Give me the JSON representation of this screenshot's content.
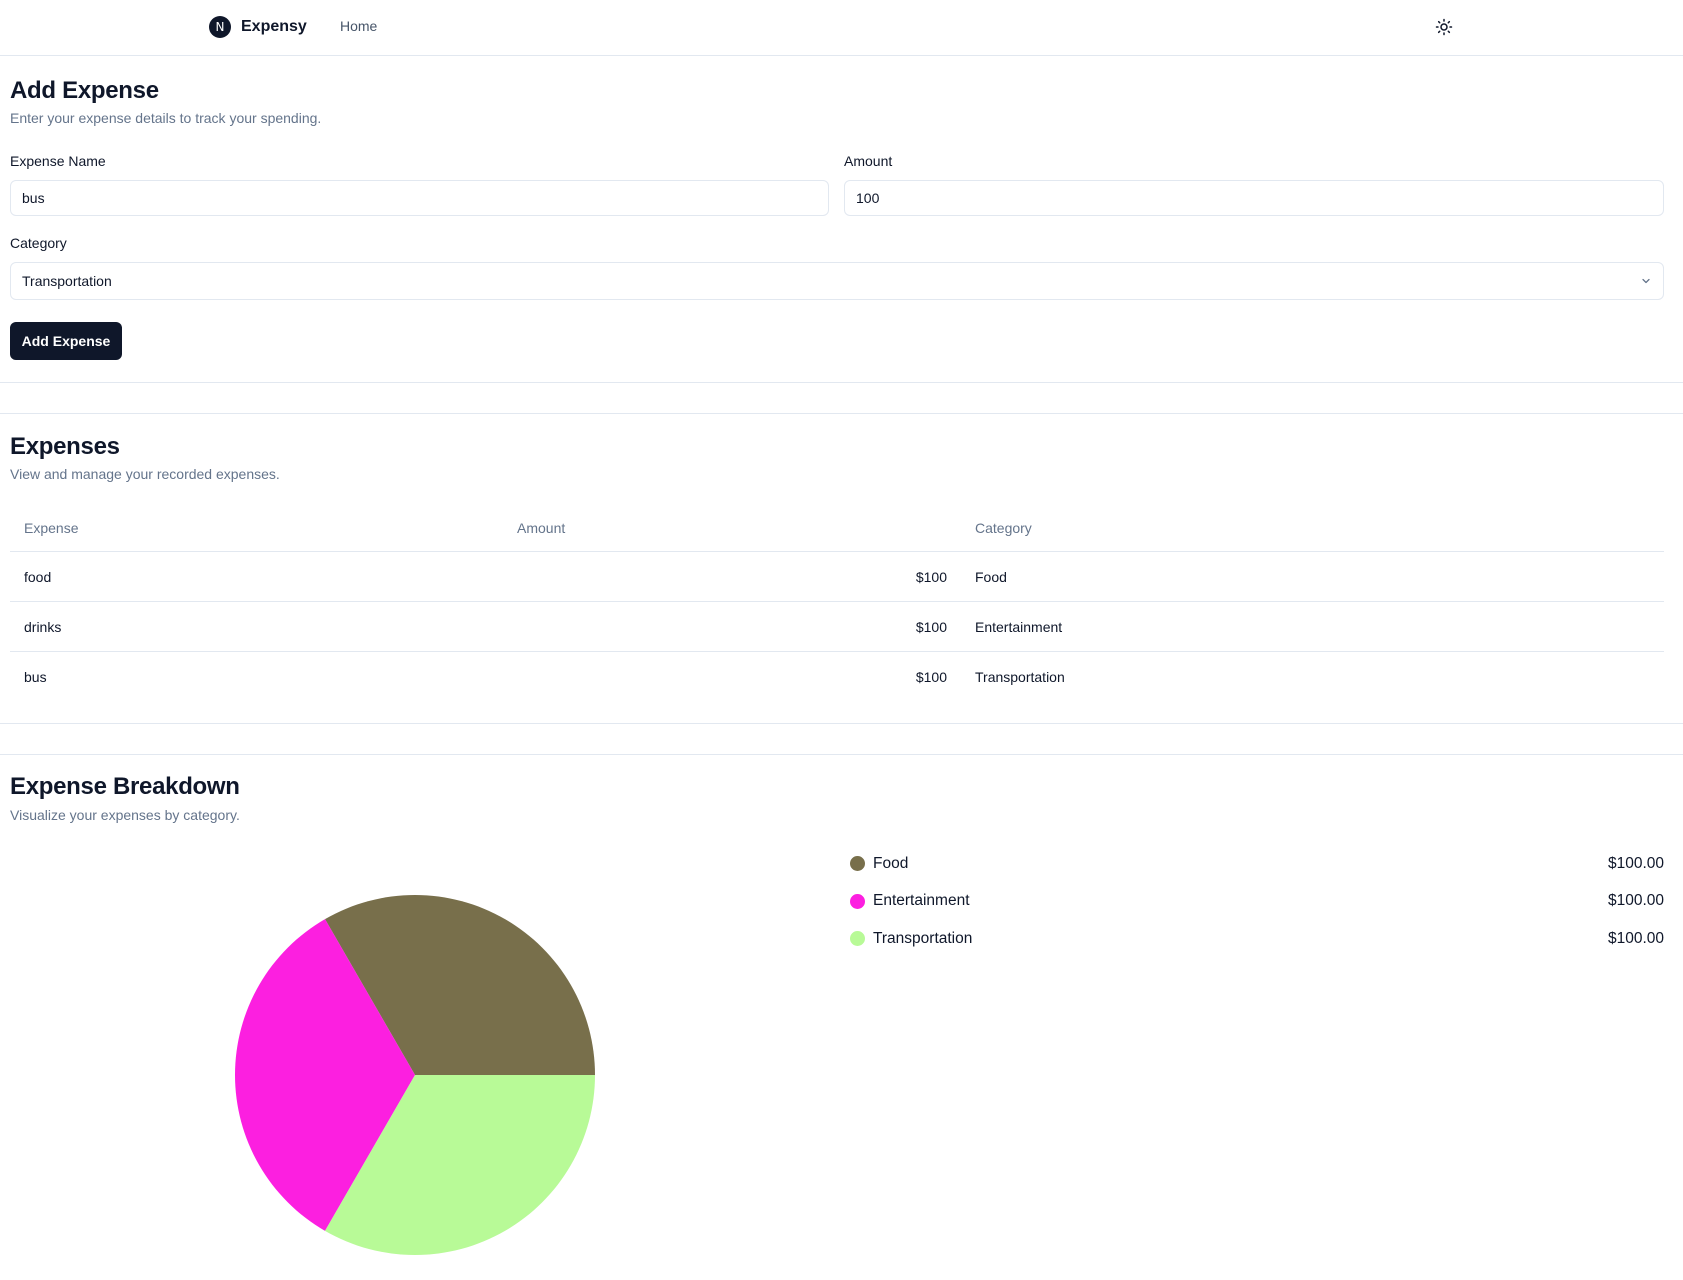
{
  "header": {
    "logo_letter": "N",
    "brand": "Expensy",
    "nav_home": "Home",
    "theme_icon": "sun-icon"
  },
  "add_expense": {
    "title": "Add Expense",
    "description": "Enter your expense details to track your spending.",
    "name_label": "Expense Name",
    "name_value": "bus",
    "amount_label": "Amount",
    "amount_value": "100",
    "category_label": "Category",
    "category_value": "Transportation",
    "submit_label": "Add Expense"
  },
  "expenses": {
    "title": "Expenses",
    "description": "View and manage your recorded expenses.",
    "columns": [
      "Expense",
      "Amount",
      "Category"
    ],
    "rows": [
      {
        "name": "food",
        "amount": "$100",
        "category": "Food"
      },
      {
        "name": "drinks",
        "amount": "$100",
        "category": "Entertainment"
      },
      {
        "name": "bus",
        "amount": "$100",
        "category": "Transportation"
      }
    ]
  },
  "breakdown": {
    "title": "Expense Breakdown",
    "description": "Visualize your expenses by category.",
    "legend": [
      {
        "label": "Food",
        "value": "$100.00",
        "color": "#786f4b"
      },
      {
        "label": "Entertainment",
        "value": "$100.00",
        "color": "#fc1fe0"
      },
      {
        "label": "Transportation",
        "value": "$100.00",
        "color": "#b8fa97"
      }
    ]
  },
  "chart_data": {
    "type": "pie",
    "categories": [
      "Food",
      "Entertainment",
      "Transportation"
    ],
    "values": [
      100,
      100,
      100
    ],
    "colors": [
      "#786f4b",
      "#fc1fe0",
      "#b8fa97"
    ]
  }
}
